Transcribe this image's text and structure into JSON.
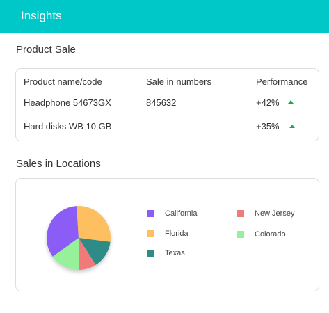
{
  "header": {
    "title": "Insights"
  },
  "product_sale": {
    "title": "Product Sale",
    "columns": [
      "Product name/code",
      "Sale in numbers",
      "Performance"
    ],
    "rows": [
      {
        "name": "Headphone 54673GX",
        "sales": "845632",
        "performance": "+42%",
        "trend": "up"
      },
      {
        "name": "Hard disks WB 10 GB",
        "sales": "",
        "performance": "+35%",
        "trend": "up"
      }
    ]
  },
  "locations": {
    "title": "Sales in Locations",
    "legend": [
      {
        "label": "California",
        "color": "#8b5cf6"
      },
      {
        "label": "Florida",
        "color": "#fdbf61"
      },
      {
        "label": "Texas",
        "color": "#2e8b85"
      },
      {
        "label": "New Jersey",
        "color": "#f07a7a"
      },
      {
        "label": "Colorado",
        "color": "#96f19a"
      }
    ]
  },
  "chart_data": {
    "type": "pie",
    "categories": [
      "California",
      "Florida",
      "Texas",
      "New Jersey",
      "Colorado"
    ],
    "values": [
      34,
      28,
      14,
      9,
      15
    ],
    "colors": [
      "#8b5cf6",
      "#fdbf61",
      "#2e8b85",
      "#f07a7a",
      "#96f19a"
    ],
    "title": ""
  }
}
